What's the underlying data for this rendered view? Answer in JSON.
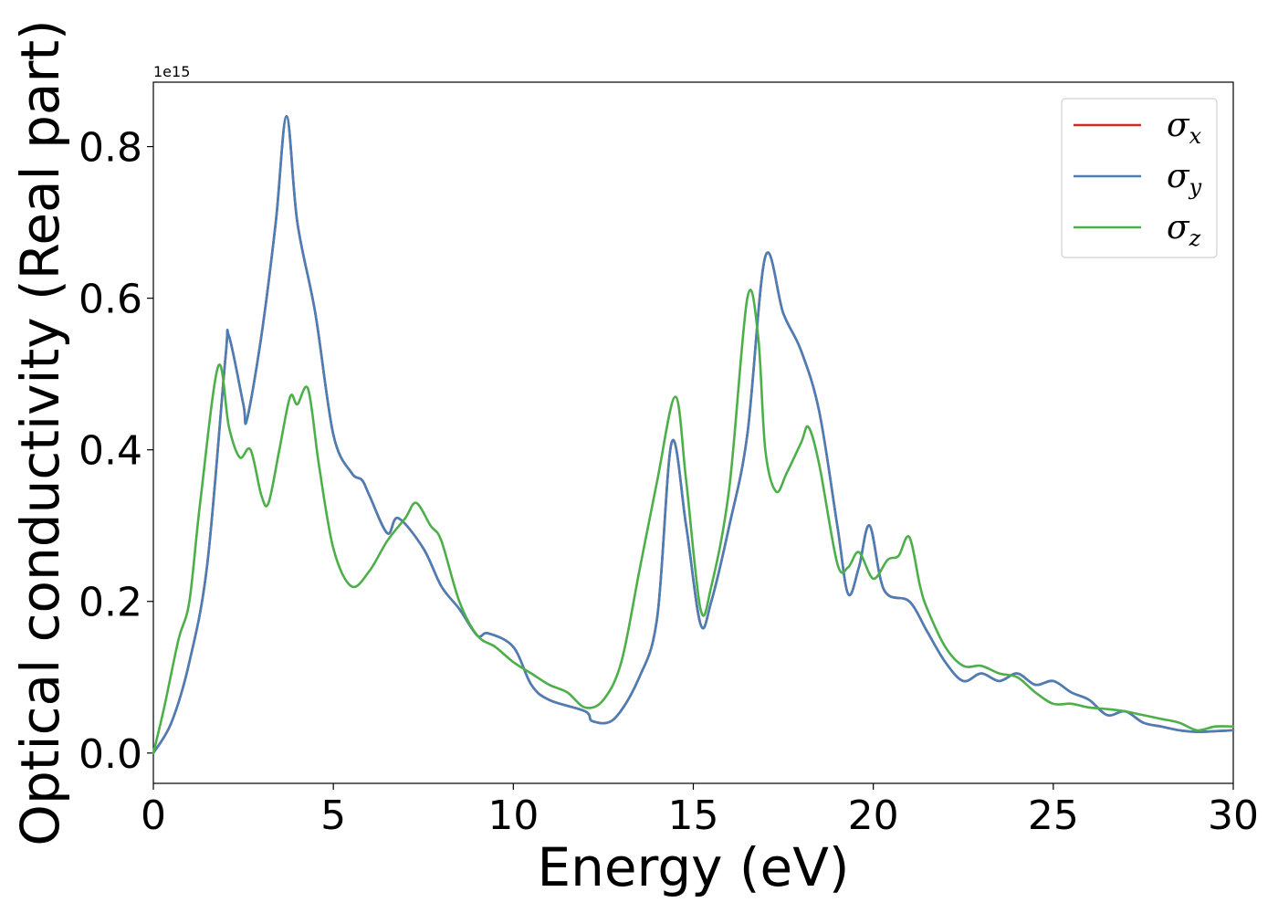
{
  "chart_data": {
    "type": "line",
    "xlabel": "Energy (eV)",
    "ylabel": "Optical conductivity (Real part)",
    "y_offset_text": "1e15",
    "xlim": [
      0,
      30
    ],
    "ylim": [
      -0.04,
      0.885
    ],
    "xticks": [
      0,
      5,
      10,
      15,
      20,
      25,
      30
    ],
    "xtick_labels": [
      "0",
      "5",
      "10",
      "15",
      "20",
      "25",
      "30"
    ],
    "yticks": [
      0.0,
      0.2,
      0.4,
      0.6,
      0.8
    ],
    "ytick_labels": [
      "0.0",
      "0.2",
      "0.4",
      "0.6",
      "0.8"
    ],
    "grid": false,
    "legend_position": "top-right",
    "series": [
      {
        "name": "σ_x",
        "label_main": "σ",
        "label_sub": "x",
        "color": "#d62728",
        "x": [
          0,
          0.5,
          1.0,
          1.5,
          2.0,
          2.1,
          2.5,
          2.6,
          3.0,
          3.4,
          3.7,
          4.0,
          4.5,
          5.0,
          5.5,
          5.8,
          6.0,
          6.5,
          6.8,
          7.5,
          8.0,
          8.5,
          9.0,
          9.3,
          10.0,
          10.5,
          11.0,
          12.0,
          12.2,
          12.8,
          13.5,
          14.0,
          14.4,
          14.8,
          15.2,
          15.5,
          16.0,
          16.5,
          17.0,
          17.5,
          18.0,
          18.5,
          19.0,
          19.3,
          19.6,
          19.9,
          20.3,
          21.0,
          21.5,
          22.0,
          22.5,
          23.0,
          23.5,
          24.0,
          24.5,
          25.0,
          25.5,
          26.0,
          26.5,
          27.0,
          27.5,
          28.0,
          28.5,
          29.0,
          30.0
        ],
        "values": [
          0.0,
          0.04,
          0.12,
          0.25,
          0.52,
          0.55,
          0.46,
          0.44,
          0.55,
          0.7,
          0.84,
          0.7,
          0.58,
          0.42,
          0.37,
          0.36,
          0.34,
          0.29,
          0.31,
          0.27,
          0.22,
          0.19,
          0.155,
          0.158,
          0.14,
          0.09,
          0.07,
          0.055,
          0.042,
          0.045,
          0.1,
          0.18,
          0.41,
          0.3,
          0.17,
          0.2,
          0.3,
          0.42,
          0.655,
          0.58,
          0.53,
          0.45,
          0.3,
          0.21,
          0.245,
          0.3,
          0.215,
          0.2,
          0.16,
          0.12,
          0.095,
          0.105,
          0.095,
          0.105,
          0.09,
          0.095,
          0.08,
          0.07,
          0.05,
          0.055,
          0.04,
          0.035,
          0.03,
          0.028,
          0.03
        ]
      },
      {
        "name": "σ_y",
        "label_main": "σ",
        "label_sub": "y",
        "color": "#4a7eb5",
        "x": [
          0,
          0.5,
          1.0,
          1.5,
          2.0,
          2.1,
          2.5,
          2.6,
          3.0,
          3.4,
          3.7,
          4.0,
          4.5,
          5.0,
          5.5,
          5.8,
          6.0,
          6.5,
          6.8,
          7.5,
          8.0,
          8.5,
          9.0,
          9.3,
          10.0,
          10.5,
          11.0,
          12.0,
          12.2,
          12.8,
          13.5,
          14.0,
          14.4,
          14.8,
          15.2,
          15.5,
          16.0,
          16.5,
          17.0,
          17.5,
          18.0,
          18.5,
          19.0,
          19.3,
          19.6,
          19.9,
          20.3,
          21.0,
          21.5,
          22.0,
          22.5,
          23.0,
          23.5,
          24.0,
          24.5,
          25.0,
          25.5,
          26.0,
          26.5,
          27.0,
          27.5,
          28.0,
          28.5,
          29.0,
          30.0
        ],
        "values": [
          0.0,
          0.04,
          0.12,
          0.25,
          0.52,
          0.55,
          0.46,
          0.44,
          0.55,
          0.7,
          0.84,
          0.7,
          0.58,
          0.42,
          0.37,
          0.36,
          0.34,
          0.29,
          0.31,
          0.27,
          0.22,
          0.19,
          0.155,
          0.158,
          0.14,
          0.09,
          0.07,
          0.055,
          0.042,
          0.045,
          0.1,
          0.18,
          0.41,
          0.3,
          0.17,
          0.2,
          0.3,
          0.42,
          0.655,
          0.58,
          0.53,
          0.45,
          0.3,
          0.21,
          0.245,
          0.3,
          0.215,
          0.2,
          0.16,
          0.12,
          0.095,
          0.105,
          0.095,
          0.105,
          0.09,
          0.095,
          0.08,
          0.07,
          0.05,
          0.055,
          0.04,
          0.035,
          0.03,
          0.028,
          0.03
        ]
      },
      {
        "name": "σ_z",
        "label_main": "σ",
        "label_sub": "z",
        "color": "#4daf4a",
        "x": [
          0,
          0.3,
          0.7,
          1.0,
          1.3,
          1.8,
          2.1,
          2.4,
          2.7,
          3.0,
          3.2,
          3.5,
          3.8,
          4.0,
          4.3,
          4.6,
          5.0,
          5.5,
          6.0,
          6.5,
          7.0,
          7.3,
          7.7,
          8.0,
          8.5,
          9.0,
          9.5,
          10.0,
          10.5,
          11.0,
          11.5,
          12.0,
          12.5,
          13.0,
          13.5,
          14.0,
          14.5,
          14.8,
          15.2,
          15.5,
          16.0,
          16.5,
          16.8,
          17.0,
          17.3,
          17.6,
          18.0,
          18.2,
          18.5,
          19.0,
          19.3,
          19.6,
          20.0,
          20.4,
          20.7,
          21.0,
          21.3,
          21.5,
          22.0,
          22.5,
          23.0,
          23.5,
          24.0,
          24.5,
          25.0,
          25.5,
          26.0,
          26.5,
          27.0,
          27.5,
          28.0,
          28.5,
          29.0,
          29.5,
          30.0
        ],
        "values": [
          0.0,
          0.06,
          0.15,
          0.2,
          0.33,
          0.51,
          0.43,
          0.39,
          0.4,
          0.34,
          0.33,
          0.4,
          0.47,
          0.46,
          0.48,
          0.38,
          0.27,
          0.22,
          0.24,
          0.28,
          0.31,
          0.33,
          0.3,
          0.28,
          0.2,
          0.155,
          0.14,
          0.12,
          0.105,
          0.09,
          0.08,
          0.06,
          0.07,
          0.12,
          0.24,
          0.36,
          0.47,
          0.36,
          0.19,
          0.22,
          0.35,
          0.6,
          0.55,
          0.4,
          0.345,
          0.37,
          0.41,
          0.43,
          0.38,
          0.25,
          0.245,
          0.265,
          0.23,
          0.255,
          0.26,
          0.285,
          0.22,
          0.19,
          0.14,
          0.115,
          0.115,
          0.105,
          0.1,
          0.08,
          0.065,
          0.065,
          0.06,
          0.058,
          0.055,
          0.05,
          0.045,
          0.04,
          0.03,
          0.035,
          0.035
        ]
      }
    ]
  }
}
